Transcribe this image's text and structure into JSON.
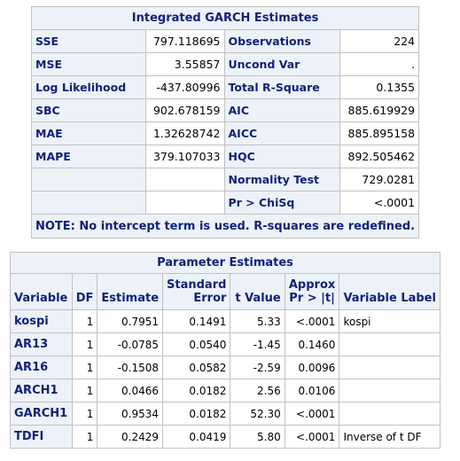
{
  "integrated_garch": {
    "title": "Integrated GARCH Estimates",
    "rows": [
      {
        "l1": "SSE",
        "v1": "797.118695",
        "l2": "Observations",
        "v2": "224"
      },
      {
        "l1": "MSE",
        "v1": "3.55857",
        "l2": "Uncond Var",
        "v2": "."
      },
      {
        "l1": "Log Likelihood",
        "v1": "-437.80996",
        "l2": "Total R-Square",
        "v2": "0.1355"
      },
      {
        "l1": "SBC",
        "v1": "902.678159",
        "l2": "AIC",
        "v2": "885.619929"
      },
      {
        "l1": "MAE",
        "v1": "1.32628742",
        "l2": "AICC",
        "v2": "885.895158"
      },
      {
        "l1": "MAPE",
        "v1": "379.107033",
        "l2": "HQC",
        "v2": "892.505462"
      },
      {
        "l1": "",
        "v1": "",
        "l2": "Normality Test",
        "v2": "729.0281"
      },
      {
        "l1": "",
        "v1": "",
        "l2": "Pr > ChiSq",
        "v2": "<.0001"
      }
    ],
    "note": "NOTE: No intercept term is used. R-squares are redefined."
  },
  "parameter_estimates": {
    "title": "Parameter Estimates",
    "headers": {
      "variable": "Variable",
      "df": "DF",
      "estimate": "Estimate",
      "std_error_1": "Standard",
      "std_error_2": "Error",
      "t_value": "t Value",
      "approx_1": "Approx",
      "approx_2": "Pr > |t|",
      "label": "Variable Label"
    },
    "rows": [
      {
        "variable": "kospi",
        "df": "1",
        "estimate": "0.7951",
        "std_error": "0.1491",
        "t_value": "5.33",
        "p": "<.0001",
        "label": "kospi"
      },
      {
        "variable": "AR13",
        "df": "1",
        "estimate": "-0.0785",
        "std_error": "0.0540",
        "t_value": "-1.45",
        "p": "0.1460",
        "label": ""
      },
      {
        "variable": "AR16",
        "df": "1",
        "estimate": "-0.1508",
        "std_error": "0.0582",
        "t_value": "-2.59",
        "p": "0.0096",
        "label": ""
      },
      {
        "variable": "ARCH1",
        "df": "1",
        "estimate": "0.0466",
        "std_error": "0.0182",
        "t_value": "2.56",
        "p": "0.0106",
        "label": ""
      },
      {
        "variable": "GARCH1",
        "df": "1",
        "estimate": "0.9534",
        "std_error": "0.0182",
        "t_value": "52.30",
        "p": "<.0001",
        "label": ""
      },
      {
        "variable": "TDFI",
        "df": "1",
        "estimate": "0.2429",
        "std_error": "0.0419",
        "t_value": "5.80",
        "p": "<.0001",
        "label": "Inverse of t DF"
      }
    ]
  }
}
